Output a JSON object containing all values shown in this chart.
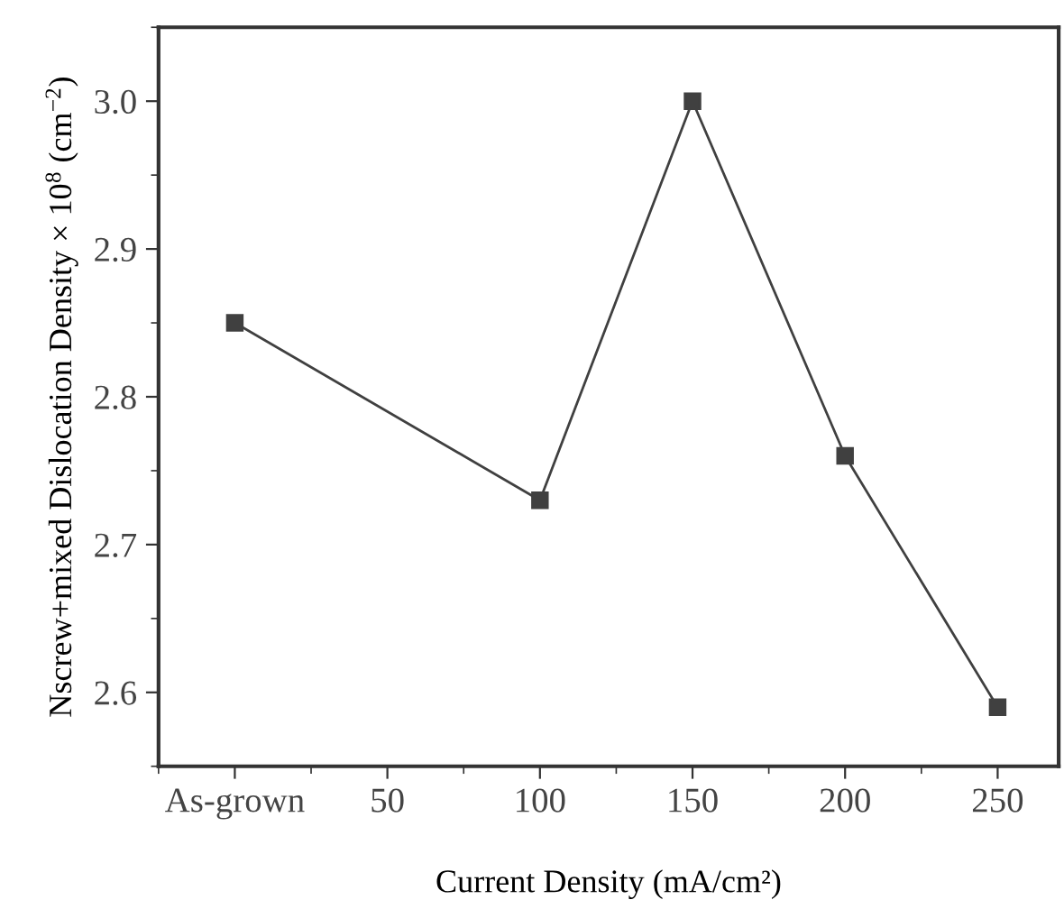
{
  "chart_data": {
    "type": "line",
    "xlabel": "Current Density (mA/cm²)",
    "ylabel": "Nscrew+mixed Dislocation Density × 10$^{8}$ (cm$^{−2}$)",
    "x": [
      0,
      100,
      150,
      200,
      250
    ],
    "series": [
      {
        "color": "#404040",
        "values": [
          2.85,
          2.73,
          3.0,
          2.76,
          2.59
        ]
      }
    ],
    "xlim": [
      -25,
      270
    ],
    "xticks": [
      {
        "value": 0,
        "label": "As-grown"
      },
      50,
      100,
      150,
      200,
      250
    ],
    "ylim": [
      2.55,
      3.05
    ],
    "yticks": [
      2.6,
      2.7,
      2.8,
      2.9,
      {
        "value": 3,
        "label": "3.0"
      }
    ],
    "marker": "square",
    "line_style": "solid",
    "grid": false,
    "legend": false
  }
}
